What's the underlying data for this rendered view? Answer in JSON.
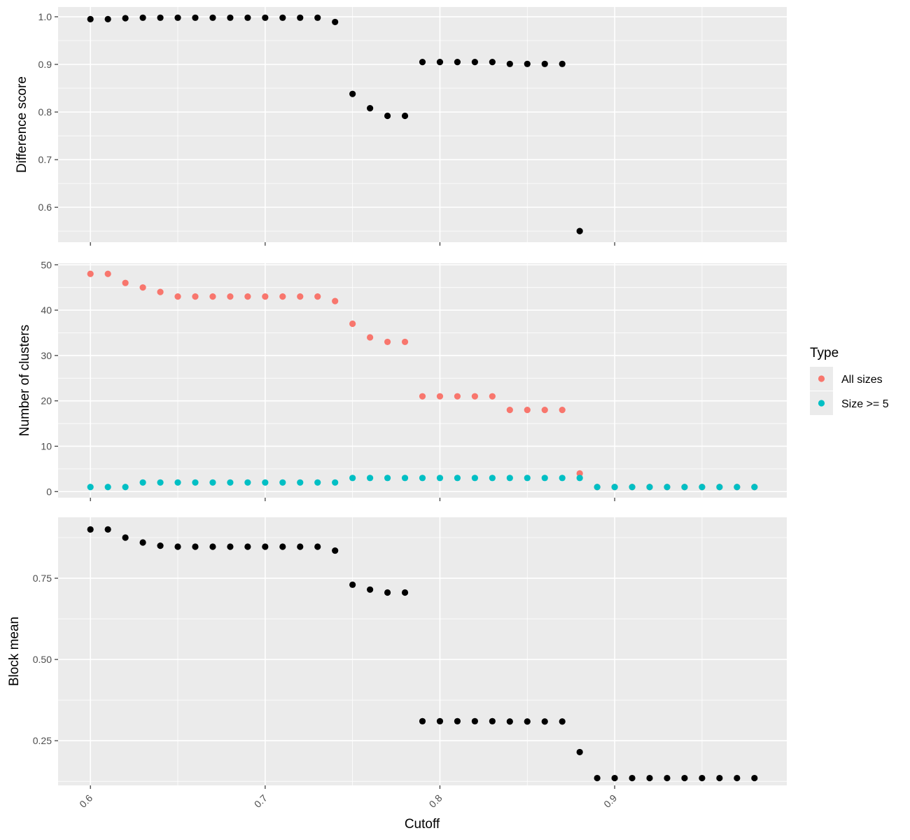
{
  "chart_data": [
    {
      "type": "scatter",
      "ylabel": "Difference score",
      "xlim": [
        0.5815,
        0.9985
      ],
      "ylim": [
        0.5267,
        1.0205
      ],
      "yticks": [
        0.6,
        0.7,
        0.8,
        0.9,
        1.0
      ],
      "ytick_labels": [
        "0.6",
        "0.7",
        "0.8",
        "0.9",
        "1.0"
      ],
      "grid": true,
      "series": [
        {
          "color": "#000000",
          "x": [
            0.6,
            0.61,
            0.62,
            0.63,
            0.64,
            0.65,
            0.66,
            0.67,
            0.68,
            0.69,
            0.7,
            0.71,
            0.72,
            0.73,
            0.74,
            0.75,
            0.76,
            0.77,
            0.78,
            0.79,
            0.8,
            0.81,
            0.82,
            0.83,
            0.84,
            0.85,
            0.86,
            0.87,
            0.88
          ],
          "y": [
            0.995,
            0.995,
            0.997,
            0.998,
            0.998,
            0.998,
            0.998,
            0.998,
            0.998,
            0.998,
            0.998,
            0.998,
            0.998,
            0.998,
            0.989,
            0.838,
            0.808,
            0.792,
            0.792,
            0.905,
            0.905,
            0.905,
            0.905,
            0.905,
            0.901,
            0.901,
            0.901,
            0.901,
            0.55
          ]
        }
      ]
    },
    {
      "type": "scatter",
      "ylabel": "Number of clusters",
      "xlim": [
        0.5815,
        0.9985
      ],
      "ylim": [
        -1.35,
        50.35
      ],
      "yticks": [
        0,
        10,
        20,
        30,
        40,
        50
      ],
      "ytick_labels": [
        "0",
        "10",
        "20",
        "30",
        "40",
        "50"
      ],
      "grid": true,
      "series": [
        {
          "name": "All sizes",
          "color": "#F8766D",
          "x": [
            0.6,
            0.61,
            0.62,
            0.63,
            0.64,
            0.65,
            0.66,
            0.67,
            0.68,
            0.69,
            0.7,
            0.71,
            0.72,
            0.73,
            0.74,
            0.75,
            0.76,
            0.77,
            0.78,
            0.79,
            0.8,
            0.81,
            0.82,
            0.83,
            0.84,
            0.85,
            0.86,
            0.87,
            0.88,
            0.89,
            0.9,
            0.91,
            0.92,
            0.93,
            0.94,
            0.95,
            0.96,
            0.97,
            0.98
          ],
          "y": [
            48,
            48,
            46,
            45,
            44,
            43,
            43,
            43,
            43,
            43,
            43,
            43,
            43,
            43,
            42,
            37,
            34,
            33,
            33,
            21,
            21,
            21,
            21,
            21,
            18,
            18,
            18,
            18,
            4,
            1,
            1,
            1,
            1,
            1,
            1,
            1,
            1,
            1,
            1
          ]
        },
        {
          "name": "Size >= 5",
          "color": "#00BFC4",
          "x": [
            0.6,
            0.61,
            0.62,
            0.63,
            0.64,
            0.65,
            0.66,
            0.67,
            0.68,
            0.69,
            0.7,
            0.71,
            0.72,
            0.73,
            0.74,
            0.75,
            0.76,
            0.77,
            0.78,
            0.79,
            0.8,
            0.81,
            0.82,
            0.83,
            0.84,
            0.85,
            0.86,
            0.87,
            0.88,
            0.89,
            0.9,
            0.91,
            0.92,
            0.93,
            0.94,
            0.95,
            0.96,
            0.97,
            0.98
          ],
          "y": [
            1,
            1,
            1,
            2,
            2,
            2,
            2,
            2,
            2,
            2,
            2,
            2,
            2,
            2,
            2,
            3,
            3,
            3,
            3,
            3,
            3,
            3,
            3,
            3,
            3,
            3,
            3,
            3,
            3,
            1,
            1,
            1,
            1,
            1,
            1,
            1,
            1,
            1,
            1
          ]
        }
      ]
    },
    {
      "type": "scatter",
      "ylabel": "Block mean",
      "xlabel": "Cutoff",
      "xlim": [
        0.5815,
        0.9985
      ],
      "ylim": [
        0.1125,
        0.9375
      ],
      "yticks": [
        0.25,
        0.5,
        0.75
      ],
      "ytick_labels": [
        "0.25",
        "0.50",
        "0.75"
      ],
      "grid": true,
      "series": [
        {
          "color": "#000000",
          "x": [
            0.6,
            0.61,
            0.62,
            0.63,
            0.64,
            0.65,
            0.66,
            0.67,
            0.68,
            0.69,
            0.7,
            0.71,
            0.72,
            0.73,
            0.74,
            0.75,
            0.76,
            0.77,
            0.78,
            0.79,
            0.8,
            0.81,
            0.82,
            0.83,
            0.84,
            0.85,
            0.86,
            0.87,
            0.88,
            0.89,
            0.9,
            0.91,
            0.92,
            0.93,
            0.94,
            0.95,
            0.96,
            0.97,
            0.98
          ],
          "y": [
            0.9,
            0.9,
            0.875,
            0.86,
            0.85,
            0.847,
            0.847,
            0.847,
            0.847,
            0.847,
            0.847,
            0.847,
            0.847,
            0.847,
            0.835,
            0.73,
            0.715,
            0.706,
            0.706,
            0.31,
            0.31,
            0.31,
            0.31,
            0.31,
            0.309,
            0.309,
            0.309,
            0.309,
            0.215,
            0.135,
            0.135,
            0.135,
            0.135,
            0.135,
            0.135,
            0.135,
            0.135,
            0.135,
            0.135
          ]
        }
      ]
    }
  ],
  "shared_x": {
    "ticks": [
      0.6,
      0.7,
      0.8,
      0.9
    ],
    "tick_labels": [
      "0.6",
      "0.7",
      "0.8",
      "0.9"
    ],
    "label": "Cutoff"
  },
  "legend": {
    "title": "Type",
    "position": "right",
    "items": [
      {
        "label": "All sizes",
        "color": "#F8766D"
      },
      {
        "label": "Size >= 5",
        "color": "#00BFC4"
      }
    ]
  },
  "colors": {
    "panel_background": "#EBEBEB",
    "grid": "#FFFFFF",
    "point_default": "#000000"
  }
}
